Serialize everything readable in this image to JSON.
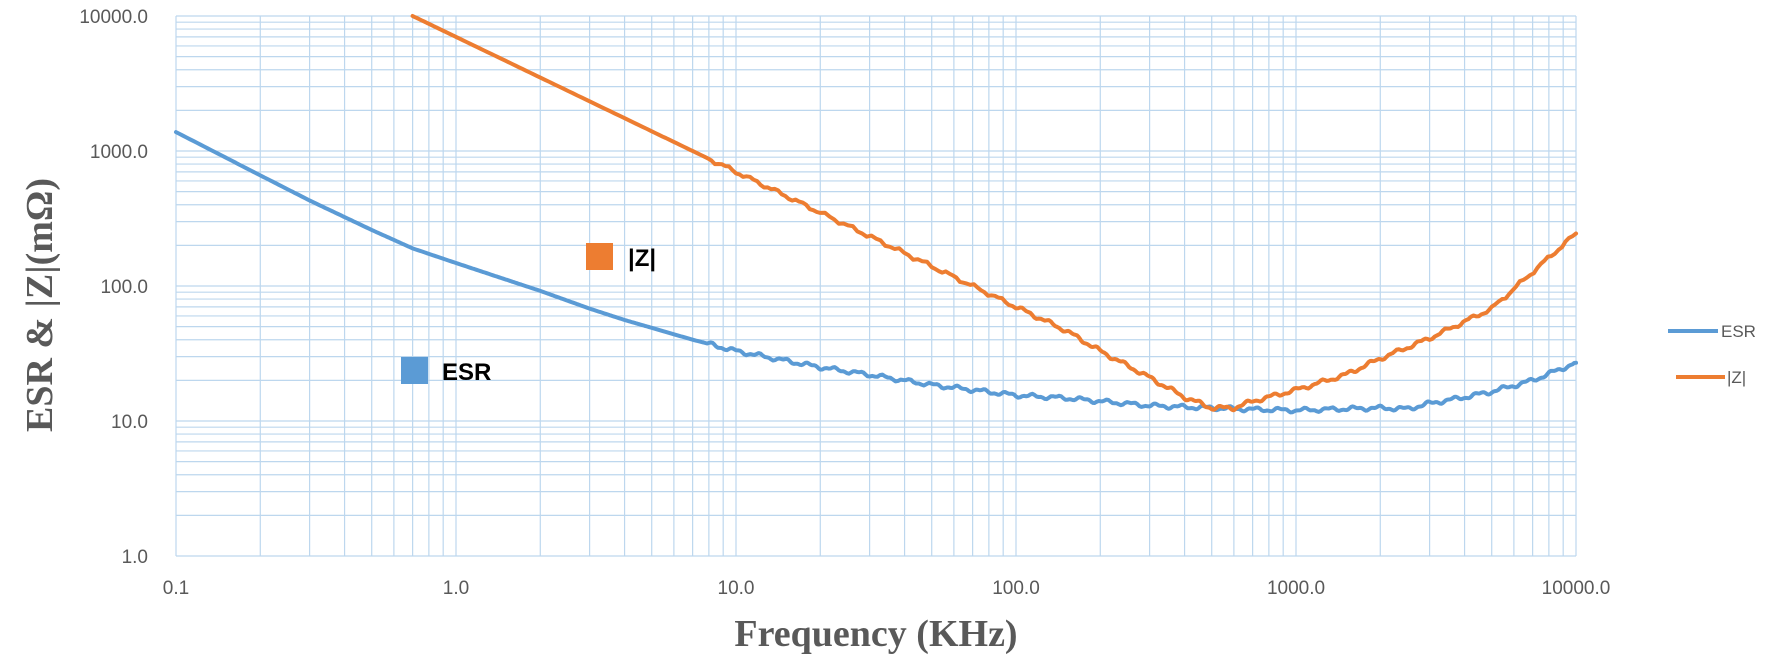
{
  "chart_data": {
    "type": "line",
    "title": "",
    "xlabel": "Frequency (KHz)",
    "ylabel": "ESR & |Z|(mΩ)",
    "x_scale": "log",
    "y_scale": "log",
    "xlim": [
      0.1,
      10000
    ],
    "ylim": [
      1,
      10000
    ],
    "x_ticks": [
      "0.1",
      "1.0",
      "10.0",
      "100.0",
      "1000.0",
      "10000.0"
    ],
    "y_ticks": [
      "1.0",
      "10.0",
      "100.0",
      "1000.0",
      "10000.0"
    ],
    "grid": true,
    "legend_position": "right",
    "annotations": [
      {
        "text": "|Z|",
        "series": "|Z|"
      },
      {
        "text": "ESR",
        "series": "ESR"
      }
    ],
    "series": [
      {
        "name": "ESR",
        "color": "#5B9BD5",
        "points": [
          [
            0.1,
            1380
          ],
          [
            0.2,
            660
          ],
          [
            0.3,
            430
          ],
          [
            0.5,
            260
          ],
          [
            0.7,
            190
          ],
          [
            1.0,
            148
          ],
          [
            1.5,
            112
          ],
          [
            2,
            92
          ],
          [
            3,
            68
          ],
          [
            4,
            56
          ],
          [
            5,
            49
          ],
          [
            7,
            40
          ],
          [
            10,
            33
          ],
          [
            15,
            28
          ],
          [
            20,
            25
          ],
          [
            30,
            22
          ],
          [
            50,
            18.5
          ],
          [
            70,
            17
          ],
          [
            100,
            15.5
          ],
          [
            150,
            14.8
          ],
          [
            200,
            14
          ],
          [
            300,
            13
          ],
          [
            400,
            12.7
          ],
          [
            500,
            12.5
          ],
          [
            700,
            12.2
          ],
          [
            1000,
            12
          ],
          [
            1500,
            12.3
          ],
          [
            2000,
            12.5
          ],
          [
            2500,
            12.3
          ],
          [
            3000,
            13.5
          ],
          [
            4000,
            15
          ],
          [
            5000,
            16.5
          ],
          [
            7000,
            20
          ],
          [
            10000,
            27
          ]
        ]
      },
      {
        "name": "|Z|",
        "color": "#ED7D31",
        "points": [
          [
            0.7,
            10000
          ],
          [
            1,
            7000
          ],
          [
            2,
            3500
          ],
          [
            5,
            1400
          ],
          [
            10,
            700
          ],
          [
            20,
            350
          ],
          [
            50,
            140
          ],
          [
            100,
            70
          ],
          [
            150,
            47
          ],
          [
            200,
            33
          ],
          [
            300,
            21
          ],
          [
            400,
            15
          ],
          [
            500,
            12.5
          ],
          [
            600,
            12.5
          ],
          [
            700,
            14
          ],
          [
            1000,
            17
          ],
          [
            1500,
            22
          ],
          [
            2000,
            29
          ],
          [
            3000,
            41
          ],
          [
            5000,
            68
          ],
          [
            10000,
            245
          ]
        ]
      }
    ]
  }
}
